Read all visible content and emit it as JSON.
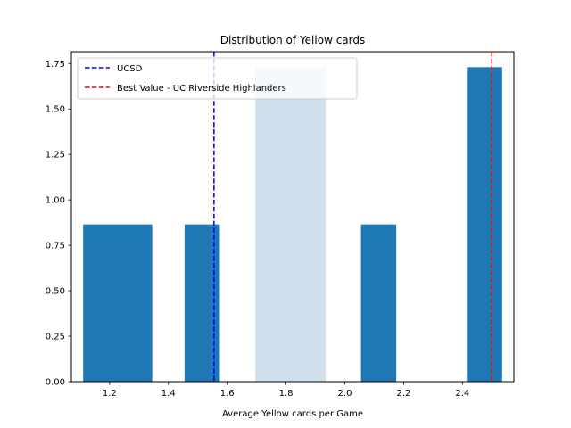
{
  "chart_data": {
    "type": "bar",
    "title": "Distribution of Yellow cards",
    "xlabel": "Average Yellow cards per Game",
    "ylabel": "",
    "xlim": [
      1.07,
      2.575
    ],
    "ylim": [
      0,
      1.815
    ],
    "xticks": [
      1.2,
      1.4,
      1.6,
      1.8,
      2.0,
      2.2,
      2.4
    ],
    "xtick_labels": [
      "1.2",
      "1.4",
      "1.6",
      "1.8",
      "2.0",
      "2.2",
      "2.4"
    ],
    "yticks": [
      0.0,
      0.25,
      0.5,
      0.75,
      1.0,
      1.25,
      1.5,
      1.75
    ],
    "ytick_labels": [
      "0.00",
      "0.25",
      "0.50",
      "0.75",
      "1.00",
      "1.25",
      "1.50",
      "1.75"
    ],
    "bins": [
      {
        "x0": 1.11,
        "x1": 1.345,
        "value": 0.865
      },
      {
        "x0": 1.455,
        "x1": 1.575,
        "value": 0.865
      },
      {
        "x0": 1.695,
        "x1": 1.935,
        "value": 1.73
      },
      {
        "x0": 2.055,
        "x1": 2.175,
        "value": 0.865
      },
      {
        "x0": 2.415,
        "x1": 2.535,
        "value": 1.73
      }
    ],
    "bar_color": "#1f77b4",
    "highlight_bar_color": "#d0e1ee",
    "highlight_bar_index": 2,
    "reference_lines": [
      {
        "name": "UCSD",
        "x": 1.555,
        "color": "#0000ff"
      },
      {
        "name": "Best Value - UC Riverside Highlanders",
        "x": 2.5,
        "color": "#ff0000"
      }
    ],
    "legend_position": "top-left"
  }
}
